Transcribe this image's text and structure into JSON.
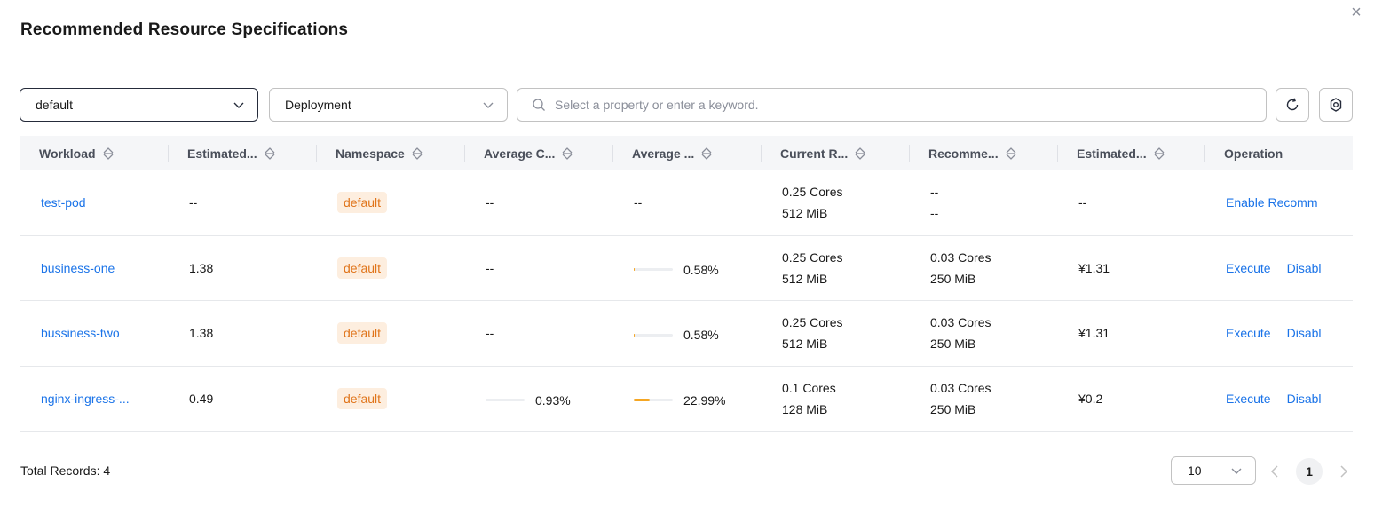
{
  "dialog": {
    "title": "Recommended Resource Specifications",
    "close_icon": "close-icon"
  },
  "filters": {
    "namespace": "default",
    "workload_type": "Deployment",
    "search_placeholder": "Select a property or enter a keyword.",
    "refresh_icon": "refresh-icon",
    "settings_icon": "settings-gear-icon"
  },
  "table": {
    "columns": [
      "Workload",
      "Estimated...",
      "Namespace",
      "Average C...",
      "Average ...",
      "Current R...",
      "Recomme...",
      "Estimated...",
      "Operation"
    ],
    "rows": [
      {
        "workload": "test-pod",
        "estimated": "--",
        "namespace": "default",
        "avg_cpu": "--",
        "avg_cpu_ratio": null,
        "avg_mem": "--",
        "avg_mem_ratio": null,
        "current_cpu": "0.25 Cores",
        "current_mem": "512 MiB",
        "rec_cpu": "--",
        "rec_mem": "--",
        "est_cost": "--",
        "op1": "Enable Recomm",
        "op2": ""
      },
      {
        "workload": "business-one",
        "estimated": "1.38",
        "namespace": "default",
        "avg_cpu": "--",
        "avg_cpu_ratio": null,
        "avg_mem": "0.58%",
        "avg_mem_ratio": 0.0058,
        "current_cpu": "0.25 Cores",
        "current_mem": "512 MiB",
        "rec_cpu": "0.03 Cores",
        "rec_mem": "250 MiB",
        "est_cost": "¥1.31",
        "op1": "Execute",
        "op2": "Disabl"
      },
      {
        "workload": "bussiness-two",
        "estimated": "1.38",
        "namespace": "default",
        "avg_cpu": "--",
        "avg_cpu_ratio": null,
        "avg_mem": "0.58%",
        "avg_mem_ratio": 0.0058,
        "current_cpu": "0.25 Cores",
        "current_mem": "512 MiB",
        "rec_cpu": "0.03 Cores",
        "rec_mem": "250 MiB",
        "est_cost": "¥1.31",
        "op1": "Execute",
        "op2": "Disabl"
      },
      {
        "workload": "nginx-ingress-...",
        "estimated": "0.49",
        "namespace": "default",
        "avg_cpu": "0.93%",
        "avg_cpu_ratio": 0.0093,
        "avg_mem": "22.99%",
        "avg_mem_ratio": 0.2299,
        "current_cpu": "0.1 Cores",
        "current_mem": "128 MiB",
        "rec_cpu": "0.03 Cores",
        "rec_mem": "250 MiB",
        "est_cost": "¥0.2",
        "op1": "Execute",
        "op2": "Disabl"
      }
    ]
  },
  "footer": {
    "total_records": "Total Records: 4",
    "page_size": "10",
    "current_page": "1"
  },
  "colors": {
    "link": "#1a73e8",
    "tag_bg": "#fdeedf",
    "tag_text": "#e0741a",
    "bar_fill": "#f5a623"
  }
}
